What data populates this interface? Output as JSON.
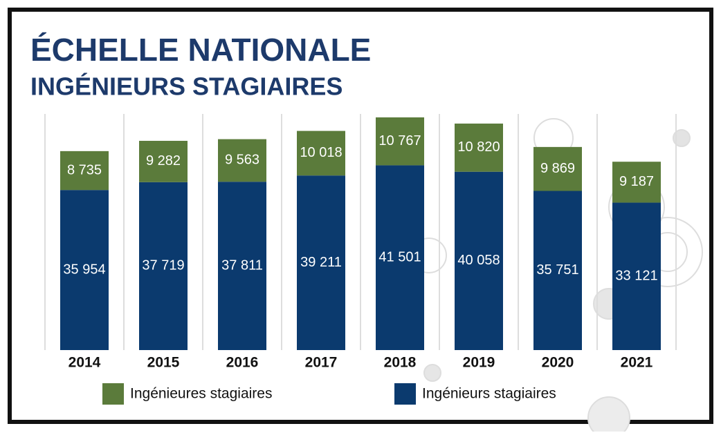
{
  "chart_data": {
    "type": "stacked-bar",
    "title": "ÉCHELLE NATIONALE",
    "subtitle": "INGÉNIEURS STAGIAIRES",
    "categories": [
      "2014",
      "2015",
      "2016",
      "2017",
      "2018",
      "2019",
      "2020",
      "2021"
    ],
    "series": [
      {
        "name": "Ingénieurs stagiaires",
        "color": "#0b3a6e",
        "values": [
          35954,
          37719,
          37811,
          39211,
          41501,
          40058,
          35751,
          33121
        ],
        "value_labels": [
          "35 954",
          "37 719",
          "37 811",
          "39 211",
          "41 501",
          "40 058",
          "35 751",
          "33 121"
        ]
      },
      {
        "name": "Ingénieures stagiaires",
        "color": "#5b7b3b",
        "values": [
          8735,
          9282,
          9563,
          10018,
          10767,
          10820,
          9869,
          9187
        ],
        "value_labels": [
          "8 735",
          "9 282",
          "9 563",
          "10 018",
          "10 767",
          "10 820",
          "9 869",
          "9 187"
        ]
      }
    ]
  }
}
